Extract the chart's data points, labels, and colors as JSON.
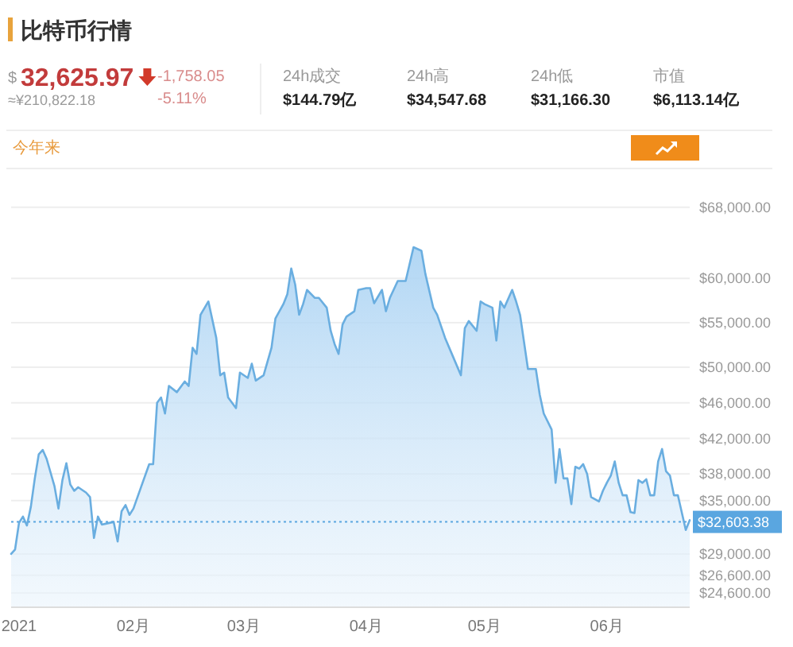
{
  "chart_data": {
    "type": "area",
    "title": "比特币行情",
    "annotations": [
      "$",
      "32,625.97",
      "-1,758.05",
      "-5.11%",
      "≈¥210,822.18",
      "24h成交",
      "$144.79亿",
      "24h高",
      "$34,547.68",
      "24h低",
      "$31,166.30",
      "市值",
      "$6,113.14亿",
      "今年来"
    ],
    "x": [
      "2021-01-01",
      "2021-01-02",
      "2021-01-03",
      "2021-01-04",
      "2021-01-05",
      "2021-01-06",
      "2021-01-07",
      "2021-01-08",
      "2021-01-09",
      "2021-01-10",
      "2021-01-12",
      "2021-01-13",
      "2021-01-14",
      "2021-01-15",
      "2021-01-16",
      "2021-01-17",
      "2021-01-18",
      "2021-01-20",
      "2021-01-21",
      "2021-01-22",
      "2021-01-23",
      "2021-01-24",
      "2021-01-25",
      "2021-01-27",
      "2021-01-28",
      "2021-01-29",
      "2021-01-30",
      "2021-01-31",
      "2021-02-01",
      "2021-02-03",
      "2021-02-05",
      "2021-02-06",
      "2021-02-07",
      "2021-02-08",
      "2021-02-09",
      "2021-02-10",
      "2021-02-12",
      "2021-02-14",
      "2021-02-15",
      "2021-02-16",
      "2021-02-17",
      "2021-02-18",
      "2021-02-20",
      "2021-02-22",
      "2021-02-23",
      "2021-02-24",
      "2021-02-25",
      "2021-02-26",
      "2021-02-27",
      "2021-02-28",
      "2021-03-02",
      "2021-03-03",
      "2021-03-04",
      "2021-03-06",
      "2021-03-08",
      "2021-03-09",
      "2021-03-11",
      "2021-03-12",
      "2021-03-13",
      "2021-03-14",
      "2021-03-15",
      "2021-03-16",
      "2021-03-17",
      "2021-03-19",
      "2021-03-20",
      "2021-03-22",
      "2021-03-23",
      "2021-03-24",
      "2021-03-25",
      "2021-03-26",
      "2021-03-27",
      "2021-03-29",
      "2021-03-30",
      "2021-04-01",
      "2021-04-02",
      "2021-04-03",
      "2021-04-05",
      "2021-04-06",
      "2021-04-07",
      "2021-04-09",
      "2021-04-11",
      "2021-04-13",
      "2021-04-15",
      "2021-04-16",
      "2021-04-18",
      "2021-04-19",
      "2021-04-21",
      "2021-04-23",
      "2021-04-25",
      "2021-04-26",
      "2021-04-27",
      "2021-04-29",
      "2021-04-30",
      "2021-05-01",
      "2021-05-03",
      "2021-05-04",
      "2021-05-05",
      "2021-05-06",
      "2021-05-08",
      "2021-05-09",
      "2021-05-10",
      "2021-05-12",
      "2021-05-14",
      "2021-05-15",
      "2021-05-16",
      "2021-05-18",
      "2021-05-19",
      "2021-05-20",
      "2021-05-21",
      "2021-05-22",
      "2021-05-23",
      "2021-05-24",
      "2021-05-25",
      "2021-05-26",
      "2021-05-27",
      "2021-05-28",
      "2021-05-30",
      "2021-05-31",
      "2021-06-01",
      "2021-06-02",
      "2021-06-03",
      "2021-06-04",
      "2021-06-05",
      "2021-06-06",
      "2021-06-07",
      "2021-06-08",
      "2021-06-09",
      "2021-06-10",
      "2021-06-11",
      "2021-06-12",
      "2021-06-13",
      "2021-06-14",
      "2021-06-15",
      "2021-06-16",
      "2021-06-17",
      "2021-06-18",
      "2021-06-19",
      "2021-06-21",
      "2021-06-22"
    ],
    "series": [
      {
        "color": "#6aaee0",
        "values": [
          29000,
          29500,
          32500,
          33200,
          32200,
          34300,
          37500,
          40200,
          40700,
          39700,
          36600,
          34100,
          37300,
          39200,
          36800,
          36100,
          36500,
          35900,
          35400,
          30800,
          33200,
          32300,
          32400,
          32600,
          30400,
          33800,
          34500,
          33400,
          34100,
          36600,
          39100,
          39100,
          46000,
          46600,
          44800,
          47900,
          47200,
          48400,
          47900,
          52200,
          51500,
          55900,
          57400,
          53300,
          49100,
          49400,
          46600,
          46000,
          45400,
          49400,
          48800,
          50400,
          48500,
          49100,
          52200,
          55500,
          57100,
          58200,
          61100,
          59300,
          55900,
          57100,
          58700,
          57800,
          57800,
          56700,
          54100,
          52600,
          51500,
          54800,
          55700,
          56300,
          58700,
          58900,
          58900,
          57200,
          58700,
          56300,
          57800,
          59700,
          59700,
          63500,
          63100,
          60500,
          56700,
          55900,
          53300,
          51200,
          49100,
          54400,
          55200,
          54100,
          57400,
          57100,
          56700,
          53000,
          57400,
          56700,
          58700,
          57400,
          55900,
          49800,
          49800,
          46900,
          44800,
          43000,
          37000,
          40800,
          37500,
          37500,
          34600,
          38800,
          38600,
          39100,
          38000,
          35400,
          34900,
          36100,
          37000,
          37800,
          39400,
          37000,
          35600,
          35600,
          33700,
          33600,
          37300,
          37000,
          37400,
          35600,
          35600,
          39400,
          40800,
          38300,
          37800,
          35600,
          35600,
          31700,
          32800
        ]
      }
    ],
    "xlim": [
      "2021-01-01",
      "2021-06-22"
    ],
    "xticks": [
      {
        "value": "2021-01-01",
        "label": "2021"
      },
      {
        "value": "2021-02-01",
        "label": "02月"
      },
      {
        "value": "2021-03-01",
        "label": "03月"
      },
      {
        "value": "2021-04-01",
        "label": "04月"
      },
      {
        "value": "2021-05-01",
        "label": "05月"
      },
      {
        "value": "2021-06-01",
        "label": "06月"
      }
    ],
    "ylim": [
      23000,
      72000
    ],
    "yticks": [
      {
        "value": 24600,
        "label": "$24,600.00"
      },
      {
        "value": 26600,
        "label": "$26,600.00"
      },
      {
        "value": 29000,
        "label": "$29,000.00"
      },
      {
        "value": 35000,
        "label": "$35,000.00"
      },
      {
        "value": 38000,
        "label": "$38,000.00"
      },
      {
        "value": 42000,
        "label": "$42,000.00"
      },
      {
        "value": 46000,
        "label": "$46,000.00"
      },
      {
        "value": 50000,
        "label": "$50,000.00"
      },
      {
        "value": 55000,
        "label": "$55,000.00"
      },
      {
        "value": 60000,
        "label": "$60,000.00"
      },
      {
        "value": 68000,
        "label": "$68,000.00"
      }
    ],
    "ref_lines": [
      {
        "axis": "y",
        "value": 32603.38,
        "label": "$32,603.38",
        "color": "#5aa6e0",
        "line_style": "dotted"
      }
    ],
    "grid": "y"
  }
}
